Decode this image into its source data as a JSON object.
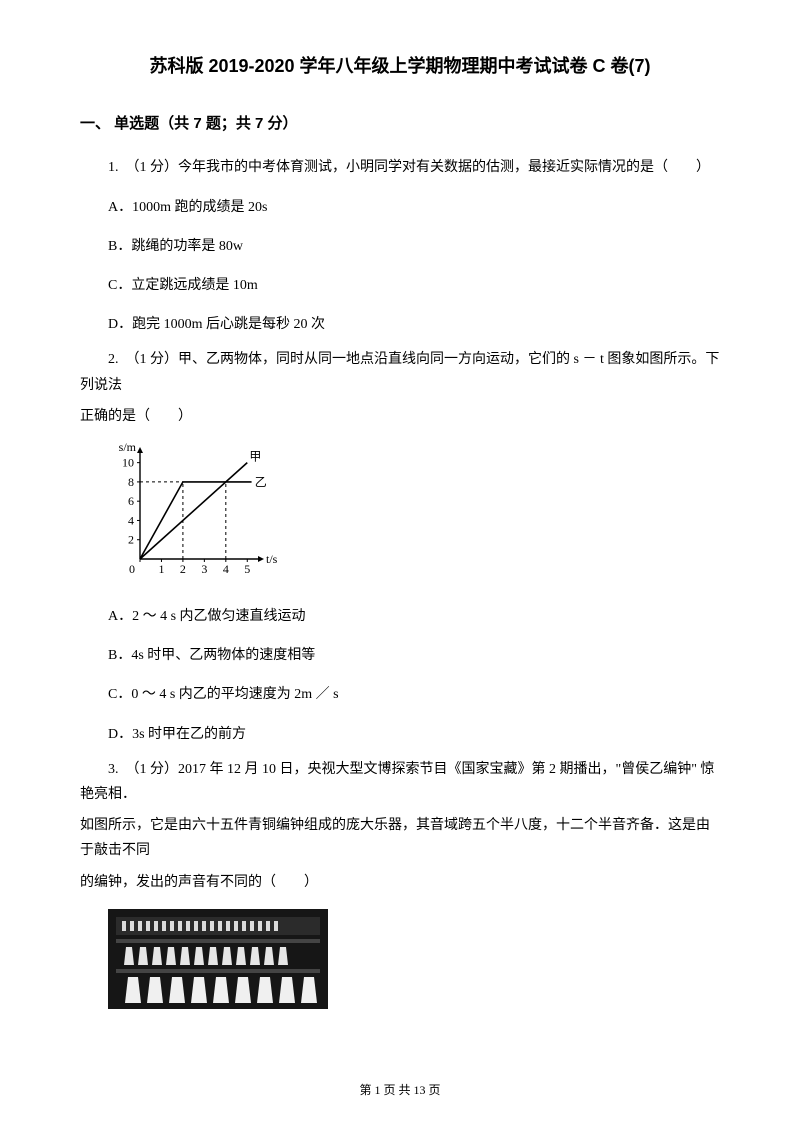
{
  "title": "苏科版 2019-2020 学年八年级上学期物理期中考试试卷 C 卷(7)",
  "section": {
    "label": "一、 单选题（共 7 题；共 7 分）"
  },
  "q1": {
    "stem": "1.　（1 分）今年我市的中考体育测试，小明同学对有关数据的估测，最接近实际情况的是（　　）",
    "A": "A．1000m 跑的成绩是 20s",
    "B": "B．跳绳的功率是 80w",
    "C": "C．立定跳远成绩是 10m",
    "D": "D．跑完 1000m 后心跳是每秒 20 次"
  },
  "q2": {
    "stem1": "2.　（1 分）甲、乙两物体，同时从同一地点沿直线向同一方向运动，它们的 s － t 图象如图所示。下列说法",
    "stem2": "正确的是（　　）",
    "A": "A．2 ～ 4 s 内乙做匀速直线运动",
    "B": "B．4s 时甲、乙两物体的速度相等",
    "C": "C．0 ～ 4 s 内乙的平均速度为 2m ／ s",
    "D": "D．3s 时甲在乙的前方",
    "chart": {
      "type": "line",
      "width": 180,
      "height": 140,
      "x_axis": {
        "label": "t/s",
        "min": 0,
        "max": 5.5,
        "ticks": [
          0,
          1,
          2,
          3,
          4,
          5
        ]
      },
      "y_axis": {
        "label": "s/m",
        "min": 0,
        "max": 11,
        "ticks": [
          0,
          2,
          4,
          6,
          8,
          10
        ]
      },
      "series": [
        {
          "name": "甲",
          "color": "#000000",
          "line_width": 1.6,
          "points": [
            [
              0,
              0
            ],
            [
              5,
              10
            ]
          ]
        },
        {
          "name": "乙",
          "color": "#000000",
          "line_width": 1.6,
          "points": [
            [
              0,
              0
            ],
            [
              2,
              8
            ],
            [
              5.2,
              8
            ]
          ]
        }
      ],
      "dashed": [
        {
          "points": [
            [
              0,
              8
            ],
            [
              2,
              8
            ]
          ],
          "color": "#000",
          "dash": "3,3"
        },
        {
          "points": [
            [
              2,
              0
            ],
            [
              2,
              8
            ]
          ],
          "color": "#000",
          "dash": "3,3"
        },
        {
          "points": [
            [
              4,
              0
            ],
            [
              4,
              8
            ]
          ],
          "color": "#000",
          "dash": "3,3"
        }
      ],
      "label_jia_pos": [
        5.1,
        10.2
      ],
      "label_yi_pos": [
        5.35,
        8
      ],
      "background_color": "#ffffff",
      "axis_color": "#000000"
    }
  },
  "q3": {
    "stem1": "3.　（1 分）2017 年 12 月 10 日，央视大型文博探索节目《国家宝藏》第 2 期播出，\"曾侯乙编钟\" 惊艳亮相．",
    "stem2": "如图所示，它是由六十五件青铜编钟组成的庞大乐器，其音域跨五个半八度，十二个半音齐备．这是由于敲击不同",
    "stem3": "的编钟，发出的声音有不同的（　　）"
  },
  "footer": {
    "page_label": "第 1 页 共 13 页"
  }
}
